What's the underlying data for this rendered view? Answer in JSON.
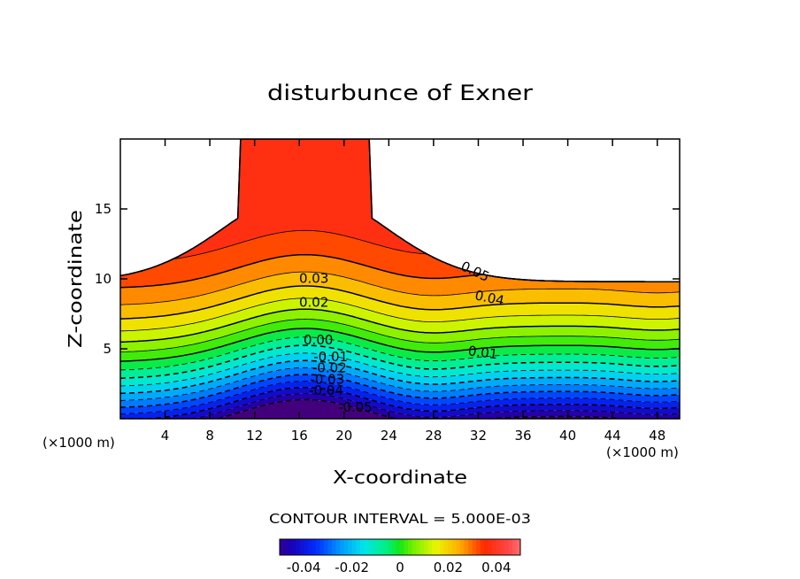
{
  "chart_data": {
    "type": "contour",
    "title": "disturbunce of Exner",
    "xlabel": "X-coordinate",
    "ylabel": "Z-coordinate",
    "x_unit_left": "(×1000 m)",
    "x_unit_right": "(×1000 m)",
    "xlim": [
      0,
      50
    ],
    "ylim": [
      0,
      20
    ],
    "xticks": [
      4,
      8,
      12,
      16,
      20,
      24,
      28,
      32,
      36,
      40,
      44,
      48
    ],
    "xtick_labels": [
      "4",
      "8",
      "12",
      "16",
      "20",
      "24",
      "28",
      "32",
      "36",
      "40",
      "44",
      "48"
    ],
    "yticks": [
      5,
      10,
      15
    ],
    "ytick_labels": [
      "5",
      "10",
      "15"
    ],
    "contour_interval_text": "CONTOUR INTERVAL = 5.000E-03",
    "contour_interval": 0.005,
    "levels": [
      -0.05,
      -0.045,
      -0.04,
      -0.035,
      -0.03,
      -0.025,
      -0.02,
      -0.015,
      -0.01,
      -0.005,
      0.0,
      0.005,
      0.01,
      0.015,
      0.02,
      0.025,
      0.03,
      0.035,
      0.04,
      0.045,
      0.05
    ],
    "negative_contours_dashed": true,
    "contour_labels": [
      {
        "text": "0.05",
        "x": 31.7,
        "z": 10.5,
        "angle": 25
      },
      {
        "text": "0.04",
        "x": 33.0,
        "z": 8.6,
        "angle": 12
      },
      {
        "text": "0.03",
        "x": 17.3,
        "z": 10.0,
        "angle": 0
      },
      {
        "text": "0.02",
        "x": 17.3,
        "z": 8.3,
        "angle": 0
      },
      {
        "text": "0.01",
        "x": 32.4,
        "z": 4.7,
        "angle": 7
      },
      {
        "text": "0.00",
        "x": 17.7,
        "z": 5.6,
        "angle": 0
      },
      {
        "text": "-0.01",
        "x": 18.8,
        "z": 4.4,
        "angle": 0
      },
      {
        "text": "-0.02",
        "x": 18.7,
        "z": 3.6,
        "angle": 0
      },
      {
        "text": "-0.03",
        "x": 18.5,
        "z": 2.8,
        "angle": 0
      },
      {
        "text": "-0.04",
        "x": 18.4,
        "z": 2.0,
        "angle": 0
      },
      {
        "text": "-0.05",
        "x": 21.0,
        "z": 0.8,
        "angle": 0
      }
    ],
    "colorbar": {
      "min": -0.05,
      "max": 0.05,
      "ticks": [
        -0.04,
        -0.02,
        0,
        0.02,
        0.04
      ],
      "tick_labels": [
        "-0.04",
        "-0.02",
        "0",
        "0.02",
        "0.04"
      ]
    }
  }
}
